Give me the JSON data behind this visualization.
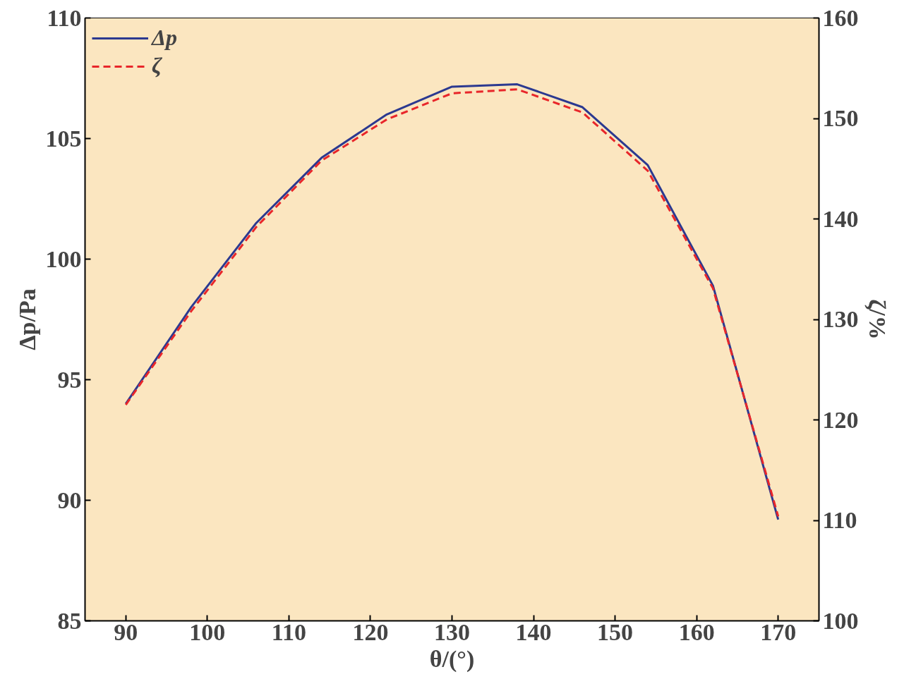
{
  "chart_data": {
    "type": "line",
    "xlabel": "θ/(°)",
    "ylabel": "Δp/Pa",
    "y2label": "ζ/%",
    "x": [
      90,
      98,
      106,
      114,
      122,
      130,
      138,
      146,
      154,
      162,
      170
    ],
    "series": [
      {
        "name": "Δp",
        "color": "#2b3990",
        "line_style": "solid",
        "values": [
          94.0,
          98.0,
          101.5,
          104.2,
          106.0,
          107.15,
          107.25,
          106.3,
          103.9,
          98.9,
          89.2
        ]
      },
      {
        "name": "ζ",
        "color": "#e8262a",
        "line_style": "dashed",
        "axis": "y2",
        "values": [
          121.5,
          130.8,
          139.2,
          145.8,
          149.9,
          152.5,
          152.9,
          150.6,
          144.8,
          133.1,
          110.4
        ]
      }
    ],
    "xlim": [
      85,
      175
    ],
    "xticks": [
      90,
      100,
      110,
      120,
      130,
      140,
      150,
      160,
      170
    ],
    "ylim": [
      85,
      110
    ],
    "yticks": [
      85,
      90,
      95,
      100,
      105,
      110
    ],
    "y2lim": [
      100,
      160
    ],
    "y2ticks": [
      100,
      110,
      120,
      130,
      140,
      150,
      160
    ],
    "grid": false,
    "legend": "top left",
    "marker": "none"
  }
}
